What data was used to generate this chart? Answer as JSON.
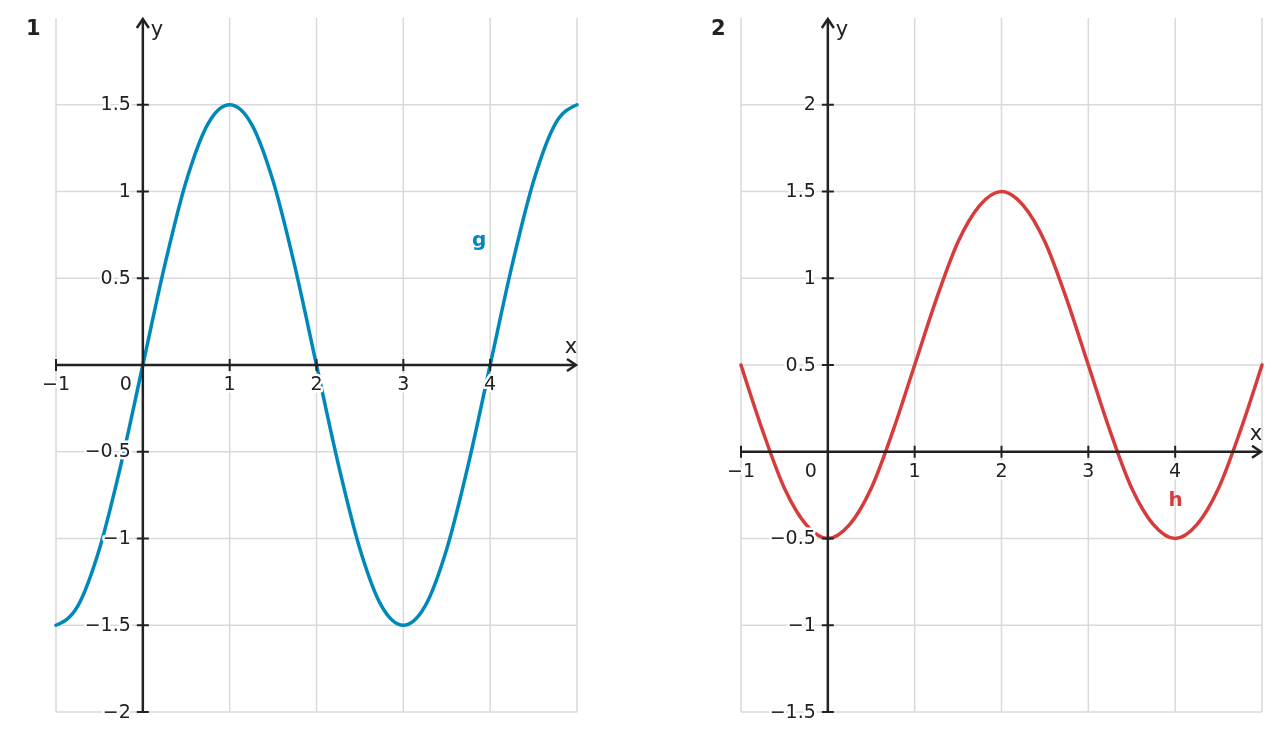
{
  "chart_data": [
    {
      "type": "line",
      "title": "1",
      "xlabel": "x",
      "ylabel": "y",
      "xlim": [
        -1,
        5
      ],
      "ylim": [
        -2,
        2
      ],
      "xticks": [
        -1,
        0,
        1,
        2,
        3,
        4,
        {
          "value": 5,
          "label": null
        }
      ],
      "yticks": [
        -2,
        -1.5,
        -1,
        -0.5,
        0.5,
        1,
        1.5
      ],
      "grid": true,
      "marker": "none",
      "line_style": "solid",
      "x": [
        -1,
        -0.75,
        -0.5,
        -0.25,
        0,
        0.25,
        0.5,
        0.75,
        1,
        1.25,
        1.5,
        1.75,
        2,
        2.25,
        2.5,
        2.75,
        3,
        3.25,
        3.5,
        3.75,
        4,
        4.25,
        4.5,
        4.75,
        5
      ],
      "series": [
        {
          "name": "g",
          "color": "#0088bb",
          "values": [
            -1.5,
            -1.39,
            -1.06,
            -0.57,
            0,
            0.57,
            1.06,
            1.39,
            1.5,
            1.39,
            1.06,
            0.57,
            0,
            -0.57,
            -1.06,
            -1.39,
            -1.5,
            -1.39,
            -1.06,
            -0.57,
            0,
            0.57,
            1.06,
            1.39,
            1.5
          ]
        }
      ]
    },
    {
      "type": "line",
      "title": "2",
      "xlabel": "x",
      "ylabel": "y",
      "xlim": [
        -1,
        5
      ],
      "ylim": [
        -1.5,
        2.5
      ],
      "xticks": [
        -1,
        0,
        1,
        2,
        3,
        4,
        {
          "value": 5,
          "label": null
        }
      ],
      "yticks": [
        -1.5,
        -1,
        -0.5,
        0.5,
        1,
        1.5,
        2
      ],
      "grid": true,
      "marker": "none",
      "line_style": "solid",
      "x": [
        -1,
        -0.75,
        -0.5,
        -0.25,
        0,
        0.25,
        0.5,
        0.75,
        1,
        1.25,
        1.5,
        1.75,
        2,
        2.25,
        2.5,
        2.75,
        3,
        3.25,
        3.5,
        3.75,
        4,
        4.25,
        4.5,
        4.75,
        5
      ],
      "series": [
        {
          "name": "h",
          "color": "#d63c3c",
          "values": [
            0.5,
            0.12,
            -0.21,
            -0.42,
            -0.5,
            -0.42,
            -0.21,
            0.12,
            0.5,
            0.88,
            1.21,
            1.42,
            1.5,
            1.42,
            1.21,
            0.88,
            0.5,
            0.12,
            -0.21,
            -0.42,
            -0.5,
            -0.42,
            -0.21,
            0.12,
            0.5
          ]
        }
      ]
    }
  ]
}
